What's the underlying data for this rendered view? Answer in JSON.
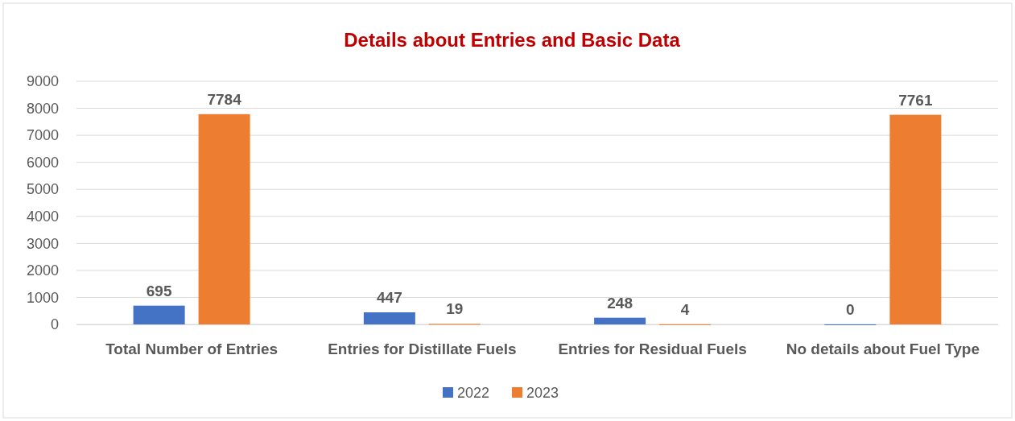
{
  "chart_data": {
    "type": "bar",
    "title": "Details about Entries and Basic Data",
    "categories": [
      "Total Number of Entries",
      "Entries for Distillate Fuels",
      "Entries for Residual Fuels",
      "No details about Fuel Type"
    ],
    "series": [
      {
        "name": "2022",
        "color": "#4472c4",
        "values": [
          695,
          447,
          248,
          0
        ]
      },
      {
        "name": "2023",
        "color": "#ed7d31",
        "values": [
          7784,
          19,
          4,
          7761
        ]
      }
    ],
    "ylim": [
      0,
      9000
    ],
    "yticks": [
      0,
      1000,
      2000,
      3000,
      4000,
      5000,
      6000,
      7000,
      8000,
      9000
    ],
    "grid": "y",
    "legend": "bottom",
    "data_labels": true
  }
}
